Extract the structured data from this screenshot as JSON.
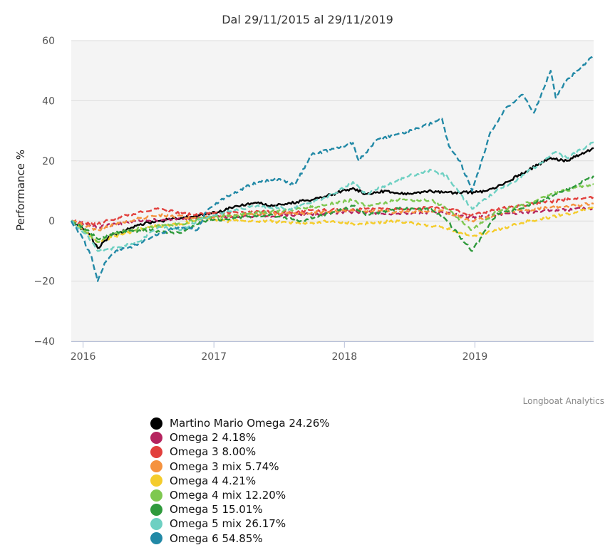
{
  "chart_data": {
    "type": "line",
    "title": "Dal 29/11/2015 al 29/11/2019",
    "ylabel": "Performance %",
    "xlabel": "",
    "xlim": [
      "2015-11-29",
      "2019-11-29"
    ],
    "ylim": [
      -40,
      60
    ],
    "y_ticks": [
      "60",
      "40",
      "20",
      "0",
      "−20",
      "−40"
    ],
    "x_ticks": [
      "2016",
      "2017",
      "2018",
      "2019"
    ],
    "grid": true,
    "legend_position": "bottom",
    "credits": "Longboat Analytics",
    "series": [
      {
        "name": "Martino Mario Omega",
        "value_label": "24.26%",
        "color": "#000000",
        "dash": "solid",
        "points": [
          [
            "2015-11-29",
            0
          ],
          [
            "2016-01-15",
            -4
          ],
          [
            "2016-02-11",
            -9
          ],
          [
            "2016-03-15",
            -5
          ],
          [
            "2016-05-01",
            -3
          ],
          [
            "2016-06-10",
            -1
          ],
          [
            "2016-08-01",
            0
          ],
          [
            "2016-10-01",
            1
          ],
          [
            "2016-12-01",
            2
          ],
          [
            "2017-01-15",
            3
          ],
          [
            "2017-03-01",
            5
          ],
          [
            "2017-05-01",
            6
          ],
          [
            "2017-06-15",
            5
          ],
          [
            "2017-08-01",
            6
          ],
          [
            "2017-10-01",
            7
          ],
          [
            "2017-12-01",
            9
          ],
          [
            "2018-01-25",
            11
          ],
          [
            "2018-03-01",
            9
          ],
          [
            "2018-05-01",
            10
          ],
          [
            "2018-07-01",
            9
          ],
          [
            "2018-09-01",
            10
          ],
          [
            "2018-10-15",
            9.5
          ],
          [
            "2019-01-01",
            9.5
          ],
          [
            "2019-02-01",
            10
          ],
          [
            "2019-04-01",
            13
          ],
          [
            "2019-06-01",
            17
          ],
          [
            "2019-08-01",
            21
          ],
          [
            "2019-09-15",
            20
          ],
          [
            "2019-11-29",
            24.26
          ]
        ]
      },
      {
        "name": "Omega 2",
        "value_label": "4.18%",
        "color": "#b5245f",
        "dash": "dashed",
        "points": [
          [
            "2015-11-29",
            0
          ],
          [
            "2016-02-11",
            -2
          ],
          [
            "2016-06-01",
            0
          ],
          [
            "2016-11-01",
            1
          ],
          [
            "2017-03-01",
            1.5
          ],
          [
            "2017-08-01",
            2
          ],
          [
            "2018-01-25",
            3
          ],
          [
            "2018-06-01",
            2.5
          ],
          [
            "2018-10-01",
            3
          ],
          [
            "2018-12-24",
            1
          ],
          [
            "2019-04-01",
            2.5
          ],
          [
            "2019-08-01",
            3.5
          ],
          [
            "2019-11-29",
            4.18
          ]
        ]
      },
      {
        "name": "Omega 3",
        "value_label": "8.00%",
        "color": "#e2403d",
        "dash": "dashed",
        "points": [
          [
            "2015-11-29",
            0
          ],
          [
            "2016-02-11",
            -1
          ],
          [
            "2016-05-01",
            2
          ],
          [
            "2016-08-01",
            4
          ],
          [
            "2016-11-01",
            2
          ],
          [
            "2017-03-01",
            3
          ],
          [
            "2017-08-01",
            3
          ],
          [
            "2018-01-25",
            4
          ],
          [
            "2018-06-01",
            4
          ],
          [
            "2018-10-01",
            4.5
          ],
          [
            "2018-12-24",
            2
          ],
          [
            "2019-04-01",
            4.5
          ],
          [
            "2019-08-01",
            6.5
          ],
          [
            "2019-11-29",
            8.0
          ]
        ]
      },
      {
        "name": "Omega 3 mix",
        "value_label": "5.74%",
        "color": "#f5923e",
        "dash": "dashed",
        "points": [
          [
            "2015-11-29",
            0
          ],
          [
            "2016-02-11",
            -3
          ],
          [
            "2016-05-01",
            0
          ],
          [
            "2016-08-01",
            2
          ],
          [
            "2016-11-01",
            1
          ],
          [
            "2017-03-01",
            2
          ],
          [
            "2017-08-01",
            2.5
          ],
          [
            "2018-01-25",
            3.5
          ],
          [
            "2018-06-01",
            3
          ],
          [
            "2018-10-01",
            3.5
          ],
          [
            "2018-12-24",
            0
          ],
          [
            "2019-04-01",
            3
          ],
          [
            "2019-08-01",
            4.5
          ],
          [
            "2019-11-29",
            5.74
          ]
        ]
      },
      {
        "name": "Omega 4",
        "value_label": "4.21%",
        "color": "#f4cc2b",
        "dash": "dashed",
        "points": [
          [
            "2015-11-29",
            0
          ],
          [
            "2016-02-11",
            -7
          ],
          [
            "2016-04-01",
            -5
          ],
          [
            "2016-07-01",
            -2
          ],
          [
            "2016-10-01",
            -1
          ],
          [
            "2016-12-01",
            1
          ],
          [
            "2017-02-01",
            0
          ],
          [
            "2017-06-01",
            0
          ],
          [
            "2017-09-01",
            -1
          ],
          [
            "2017-12-01",
            0
          ],
          [
            "2018-02-01",
            -1
          ],
          [
            "2018-06-01",
            0
          ],
          [
            "2018-10-01",
            -2
          ],
          [
            "2018-12-24",
            -5
          ],
          [
            "2019-03-01",
            -3
          ],
          [
            "2019-06-01",
            0
          ],
          [
            "2019-09-01",
            2
          ],
          [
            "2019-11-29",
            4.21
          ]
        ]
      },
      {
        "name": "Omega 4 mix",
        "value_label": "12.20%",
        "color": "#7ec850",
        "dash": "dashed",
        "points": [
          [
            "2015-11-29",
            0
          ],
          [
            "2016-01-15",
            -4
          ],
          [
            "2016-02-11",
            -7
          ],
          [
            "2016-04-01",
            -4
          ],
          [
            "2016-07-01",
            -2
          ],
          [
            "2016-10-01",
            -1
          ],
          [
            "2016-12-01",
            1
          ],
          [
            "2017-03-01",
            2
          ],
          [
            "2017-06-01",
            3
          ],
          [
            "2017-09-01",
            4
          ],
          [
            "2018-01-25",
            7
          ],
          [
            "2018-03-01",
            5
          ],
          [
            "2018-06-01",
            7
          ],
          [
            "2018-09-01",
            7
          ],
          [
            "2018-10-15",
            4
          ],
          [
            "2018-12-24",
            -3
          ],
          [
            "2019-03-01",
            3
          ],
          [
            "2019-06-01",
            6
          ],
          [
            "2019-08-01",
            9
          ],
          [
            "2019-11-29",
            12.2
          ]
        ]
      },
      {
        "name": "Omega 5",
        "value_label": "15.01%",
        "color": "#2f9a3c",
        "dash": "dashed",
        "points": [
          [
            "2015-11-29",
            0
          ],
          [
            "2016-01-15",
            -3
          ],
          [
            "2016-02-11",
            -6
          ],
          [
            "2016-04-01",
            -4
          ],
          [
            "2016-07-01",
            -3
          ],
          [
            "2016-10-01",
            -4
          ],
          [
            "2016-12-01",
            0
          ],
          [
            "2017-03-01",
            1
          ],
          [
            "2017-06-01",
            2
          ],
          [
            "2017-09-01",
            0
          ],
          [
            "2017-12-01",
            3
          ],
          [
            "2018-01-25",
            5
          ],
          [
            "2018-03-01",
            2
          ],
          [
            "2018-06-01",
            4
          ],
          [
            "2018-09-01",
            4
          ],
          [
            "2018-10-15",
            0
          ],
          [
            "2018-12-24",
            -10
          ],
          [
            "2019-03-01",
            2
          ],
          [
            "2019-06-01",
            5
          ],
          [
            "2019-08-01",
            8
          ],
          [
            "2019-11-29",
            15.01
          ]
        ]
      },
      {
        "name": "Omega 5 mix",
        "value_label": "26.17%",
        "color": "#6dd0c2",
        "dash": "dashed",
        "points": [
          [
            "2015-11-29",
            0
          ],
          [
            "2016-01-15",
            -5
          ],
          [
            "2016-02-11",
            -10
          ],
          [
            "2016-04-01",
            -9
          ],
          [
            "2016-06-01",
            -7
          ],
          [
            "2016-08-01",
            -2
          ],
          [
            "2016-10-01",
            -3
          ],
          [
            "2016-12-01",
            1
          ],
          [
            "2017-02-01",
            3
          ],
          [
            "2017-05-01",
            5
          ],
          [
            "2017-08-01",
            4
          ],
          [
            "2017-10-01",
            6
          ],
          [
            "2017-12-01",
            9
          ],
          [
            "2018-01-25",
            13
          ],
          [
            "2018-03-01",
            9
          ],
          [
            "2018-05-01",
            12
          ],
          [
            "2018-07-01",
            15
          ],
          [
            "2018-09-01",
            17
          ],
          [
            "2018-10-15",
            15
          ],
          [
            "2018-11-15",
            10
          ],
          [
            "2018-12-24",
            4
          ],
          [
            "2019-01-15",
            6
          ],
          [
            "2019-03-01",
            10
          ],
          [
            "2019-05-01",
            14
          ],
          [
            "2019-07-01",
            19
          ],
          [
            "2019-08-15",
            23
          ],
          [
            "2019-09-15",
            21
          ],
          [
            "2019-11-29",
            26.17
          ]
        ]
      },
      {
        "name": "Omega 6",
        "value_label": "54.85%",
        "color": "#2289a6",
        "dash": "dashed",
        "points": [
          [
            "2015-11-29",
            0
          ],
          [
            "2016-01-01",
            -6
          ],
          [
            "2016-01-25",
            -12
          ],
          [
            "2016-02-11",
            -20
          ],
          [
            "2016-03-01",
            -14
          ],
          [
            "2016-04-01",
            -10
          ],
          [
            "2016-06-01",
            -8
          ],
          [
            "2016-08-01",
            -4
          ],
          [
            "2016-10-01",
            -2
          ],
          [
            "2016-11-15",
            -3
          ],
          [
            "2016-12-10",
            3
          ],
          [
            "2017-02-01",
            8
          ],
          [
            "2017-05-01",
            13
          ],
          [
            "2017-07-01",
            14
          ],
          [
            "2017-08-15",
            12
          ],
          [
            "2017-10-01",
            22
          ],
          [
            "2017-12-01",
            24
          ],
          [
            "2018-01-25",
            26
          ],
          [
            "2018-02-10",
            20
          ],
          [
            "2018-04-01",
            27
          ],
          [
            "2018-06-01",
            29
          ],
          [
            "2018-08-01",
            31
          ],
          [
            "2018-10-01",
            34
          ],
          [
            "2018-10-20",
            25
          ],
          [
            "2018-11-20",
            20
          ],
          [
            "2018-12-24",
            10
          ],
          [
            "2019-01-15",
            18
          ],
          [
            "2019-02-15",
            30
          ],
          [
            "2019-04-01",
            38
          ],
          [
            "2019-05-15",
            42
          ],
          [
            "2019-06-15",
            36
          ],
          [
            "2019-08-01",
            50
          ],
          [
            "2019-08-15",
            41
          ],
          [
            "2019-09-15",
            47
          ],
          [
            "2019-10-15",
            50
          ],
          [
            "2019-11-29",
            54.85
          ]
        ]
      }
    ]
  }
}
